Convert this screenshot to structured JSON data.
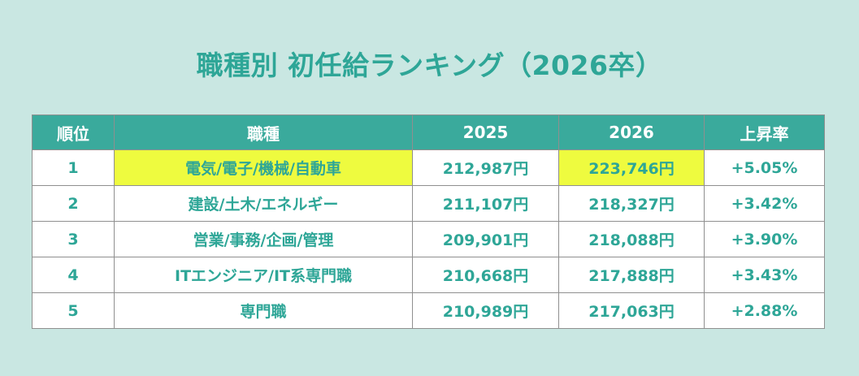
{
  "title": "職種別 初任給ランキング（2026卒）",
  "colors": {
    "background": "#c9e7e2",
    "header_bg": "#3aaa9c",
    "header_text": "#ffffff",
    "accent_text": "#2ea697",
    "highlight": "#eefb3f",
    "cell_bg": "#ffffff"
  },
  "chart_data": {
    "type": "table",
    "title": "職種別 初任給ランキング（2026卒）",
    "columns": [
      "順位",
      "職種",
      "2025",
      "2026",
      "上昇率"
    ],
    "rows": [
      {
        "rank": "1",
        "job": "電気/電子/機械/自動車",
        "y2025": "212,987円",
        "y2026": "223,746円",
        "growth": "+5.05%",
        "highlight": [
          "job",
          "y2026"
        ]
      },
      {
        "rank": "2",
        "job": "建設/土木/エネルギー",
        "y2025": "211,107円",
        "y2026": "218,327円",
        "growth": "+3.42%",
        "highlight": []
      },
      {
        "rank": "3",
        "job": "営業/事務/企画/管理",
        "y2025": "209,901円",
        "y2026": "218,088円",
        "growth": "+3.90%",
        "highlight": []
      },
      {
        "rank": "4",
        "job": "ITエンジニア/IT系専門職",
        "y2025": "210,668円",
        "y2026": "217,888円",
        "growth": "+3.43%",
        "highlight": []
      },
      {
        "rank": "5",
        "job": "専門職",
        "y2025": "210,989円",
        "y2026": "217,063円",
        "growth": "+2.88%",
        "highlight": []
      }
    ]
  }
}
